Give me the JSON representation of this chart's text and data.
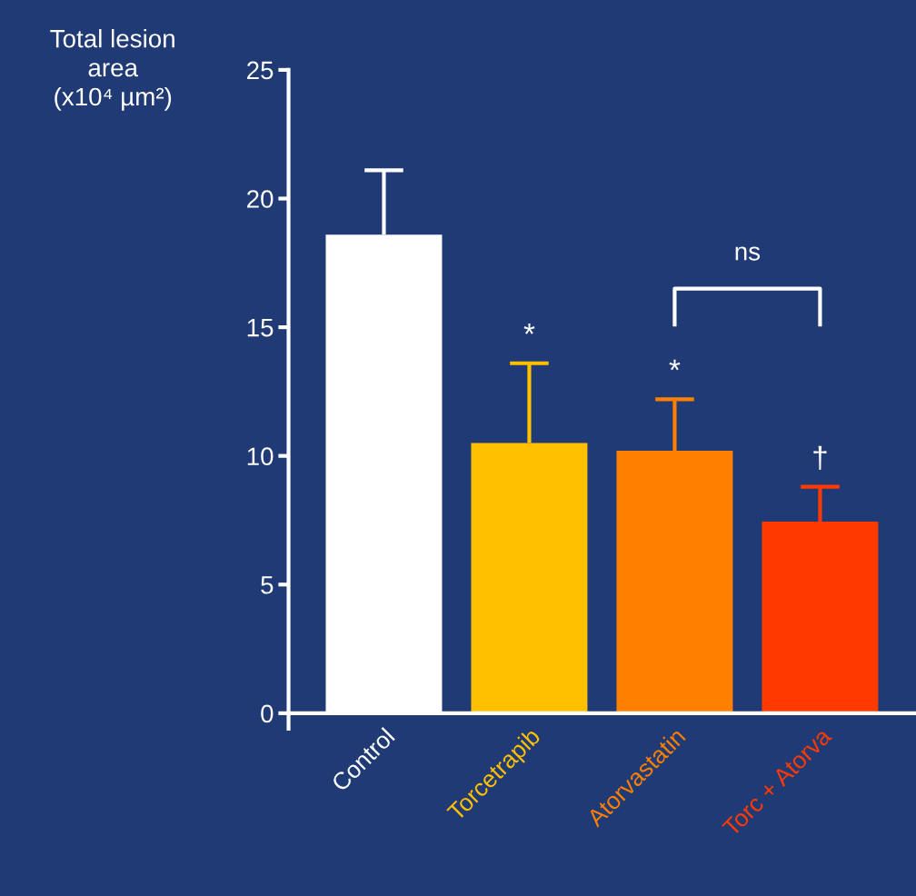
{
  "chart_data": {
    "type": "bar",
    "ylabel": "Total lesion\narea\n(x10⁴ µm²)",
    "categories": [
      "Control",
      "Torcetrapib",
      "Atorvastatin",
      "Torc + Atorva"
    ],
    "values": [
      18.6,
      10.5,
      10.2,
      7.45
    ],
    "colors": [
      "#ffffff",
      "#ffc000",
      "#ff7f00",
      "#ff3a00"
    ],
    "errors": [
      [
        18.6,
        21.1
      ],
      [
        10.5,
        13.6
      ],
      [
        10.2,
        12.2
      ],
      [
        7.45,
        8.8
      ]
    ],
    "ylim": [
      0,
      25
    ],
    "yticks": [
      0,
      5,
      10,
      15,
      20,
      25
    ],
    "grid": false,
    "legend": false,
    "annotations": [
      "*",
      "*",
      "†",
      "ns"
    ]
  }
}
